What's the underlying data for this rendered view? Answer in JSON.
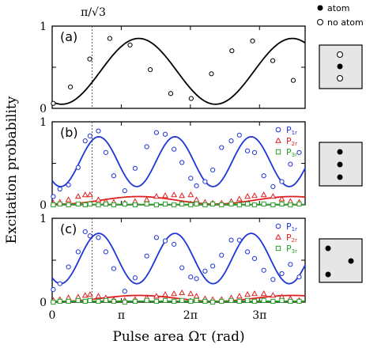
{
  "figure": {
    "ylabel": "Excitation probability",
    "xlabel": "Pulse area Ωτ (rad)",
    "xticks": [
      "0",
      "π",
      "2π",
      "3π"
    ],
    "vline_label": "π/√3",
    "key": {
      "atom": "atom",
      "no_atom": "no atom"
    }
  },
  "chart_data": [
    {
      "panel": "(a)",
      "type": "line+scatter",
      "xlim": [
        0,
        11.5
      ],
      "ylim": [
        0,
        1
      ],
      "yticks": [
        "0",
        "1"
      ],
      "vline_x": 1.8138,
      "inset": "triangle column: open, filled, open",
      "series": [
        {
          "color": "#000000",
          "marker": "circle",
          "points": [
            [
              0.05,
              0.06
            ],
            [
              0.83,
              0.26
            ],
            [
              1.71,
              0.6
            ],
            [
              2.62,
              0.85
            ],
            [
              3.54,
              0.77
            ],
            [
              4.46,
              0.47
            ],
            [
              5.39,
              0.18
            ],
            [
              6.32,
              0.12
            ],
            [
              7.24,
              0.42
            ],
            [
              8.17,
              0.7
            ],
            [
              9.11,
              0.82
            ],
            [
              10.03,
              0.58
            ],
            [
              10.96,
              0.34
            ]
          ],
          "fit": {
            "amp": 0.4,
            "offset": 0.45,
            "freq": 0.9,
            "phase": -0.4
          }
        }
      ]
    },
    {
      "panel": "(b)",
      "type": "line+scatter",
      "xlim": [
        0,
        11.5
      ],
      "ylim": [
        0,
        1
      ],
      "yticks": [
        "0",
        "1"
      ],
      "vline_x": 1.8138,
      "inset": "three filled atoms in a vertical column",
      "series": [
        {
          "name": "P1r",
          "label_main": "P",
          "label_sub": "1r",
          "color": "#1f35d8",
          "marker": "circle",
          "points": [
            [
              0.05,
              0.1
            ],
            [
              0.35,
              0.19
            ],
            [
              0.74,
              0.24
            ],
            [
              1.18,
              0.45
            ],
            [
              1.5,
              0.77
            ],
            [
              1.72,
              0.83
            ],
            [
              2.1,
              0.89
            ],
            [
              2.44,
              0.63
            ],
            [
              2.8,
              0.35
            ],
            [
              3.3,
              0.17
            ],
            [
              3.77,
              0.44
            ],
            [
              4.3,
              0.7
            ],
            [
              4.74,
              0.87
            ],
            [
              5.14,
              0.85
            ],
            [
              5.54,
              0.67
            ],
            [
              5.9,
              0.51
            ],
            [
              6.3,
              0.32
            ],
            [
              6.56,
              0.23
            ],
            [
              6.95,
              0.28
            ],
            [
              7.3,
              0.42
            ],
            [
              7.7,
              0.69
            ],
            [
              8.14,
              0.77
            ],
            [
              8.51,
              0.84
            ],
            [
              8.88,
              0.65
            ],
            [
              9.2,
              0.63
            ],
            [
              9.62,
              0.35
            ],
            [
              10.04,
              0.22
            ],
            [
              10.44,
              0.28
            ],
            [
              10.83,
              0.49
            ],
            [
              11.23,
              0.63
            ]
          ],
          "fit": {
            "amp": 0.3,
            "offset": 0.52,
            "freq": 1.8138,
            "phase": -0.7
          }
        },
        {
          "name": "P2r",
          "label_main": "P",
          "label_sub": "2r",
          "color": "#e02020",
          "marker": "triangle",
          "points": [
            [
              0.05,
              0.02
            ],
            [
              0.35,
              0.03
            ],
            [
              0.74,
              0.06
            ],
            [
              1.18,
              0.1
            ],
            [
              1.5,
              0.12
            ],
            [
              1.72,
              0.12
            ],
            [
              2.1,
              0.06
            ],
            [
              2.44,
              0.04
            ],
            [
              2.8,
              0.03
            ],
            [
              3.3,
              0.02
            ],
            [
              3.77,
              0.04
            ],
            [
              4.3,
              0.06
            ],
            [
              4.74,
              0.1
            ],
            [
              5.14,
              0.11
            ],
            [
              5.54,
              0.12
            ],
            [
              5.9,
              0.11
            ],
            [
              6.3,
              0.12
            ],
            [
              6.56,
              0.06
            ],
            [
              6.95,
              0.03
            ],
            [
              7.3,
              0.02
            ],
            [
              7.7,
              0.02
            ],
            [
              8.14,
              0.04
            ],
            [
              8.51,
              0.07
            ],
            [
              8.88,
              0.1
            ],
            [
              9.2,
              0.11
            ],
            [
              9.62,
              0.12
            ],
            [
              10.04,
              0.1
            ],
            [
              10.44,
              0.07
            ],
            [
              10.83,
              0.04
            ],
            [
              11.23,
              0.03
            ]
          ],
          "fit": {
            "amp": 0.045,
            "offset": 0.055,
            "freq": 0.9,
            "phase": -0.4
          }
        },
        {
          "name": "P3r",
          "label_main": "P",
          "label_sub": "3r",
          "color": "#2aa02a",
          "marker": "square",
          "points": [
            [
              0.05,
              0.0
            ],
            [
              0.35,
              0.01
            ],
            [
              0.74,
              0.0
            ],
            [
              1.18,
              0.01
            ],
            [
              1.5,
              0.0
            ],
            [
              1.72,
              0.01
            ],
            [
              2.1,
              0.0
            ],
            [
              2.44,
              0.01
            ],
            [
              2.8,
              0.0
            ],
            [
              3.3,
              0.01
            ],
            [
              3.77,
              0.0
            ],
            [
              4.3,
              0.01
            ],
            [
              4.74,
              0.0
            ],
            [
              5.14,
              0.01
            ],
            [
              5.54,
              0.0
            ],
            [
              5.9,
              0.01
            ],
            [
              6.3,
              0.0
            ],
            [
              6.56,
              0.01
            ],
            [
              6.95,
              0.0
            ],
            [
              7.3,
              0.01
            ],
            [
              7.7,
              0.0
            ],
            [
              8.14,
              0.01
            ],
            [
              8.51,
              0.0
            ],
            [
              8.88,
              0.01
            ],
            [
              9.2,
              0.0
            ],
            [
              9.62,
              0.01
            ],
            [
              10.04,
              0.0
            ],
            [
              10.44,
              0.01
            ],
            [
              10.83,
              0.0
            ],
            [
              11.23,
              0.01
            ]
          ],
          "fit": {
            "amp": 0.0,
            "offset": 0.005,
            "freq": 1.0,
            "phase": 0.0
          }
        }
      ]
    },
    {
      "panel": "(c)",
      "type": "line+scatter",
      "xlim": [
        0,
        11.5
      ],
      "ylim": [
        0,
        1
      ],
      "yticks": [
        "0",
        "1"
      ],
      "vline_x": 1.8138,
      "inset": "triangle: two filled atoms left, one filled atom right",
      "series": [
        {
          "name": "P1r",
          "label_main": "P",
          "label_sub": "1r",
          "color": "#1f35d8",
          "marker": "circle",
          "points": [
            [
              0.05,
              0.15
            ],
            [
              0.35,
              0.22
            ],
            [
              0.74,
              0.42
            ],
            [
              1.18,
              0.6
            ],
            [
              1.5,
              0.84
            ],
            [
              1.72,
              0.79
            ],
            [
              2.1,
              0.77
            ],
            [
              2.44,
              0.6
            ],
            [
              2.8,
              0.4
            ],
            [
              3.3,
              0.13
            ],
            [
              3.77,
              0.29
            ],
            [
              4.3,
              0.55
            ],
            [
              4.74,
              0.77
            ],
            [
              5.14,
              0.73
            ],
            [
              5.54,
              0.69
            ],
            [
              5.9,
              0.41
            ],
            [
              6.3,
              0.3
            ],
            [
              6.56,
              0.28
            ],
            [
              6.95,
              0.37
            ],
            [
              7.3,
              0.43
            ],
            [
              7.7,
              0.56
            ],
            [
              8.14,
              0.74
            ],
            [
              8.51,
              0.74
            ],
            [
              8.88,
              0.6
            ],
            [
              9.2,
              0.52
            ],
            [
              9.62,
              0.38
            ],
            [
              10.04,
              0.27
            ],
            [
              10.44,
              0.34
            ],
            [
              10.83,
              0.45
            ],
            [
              11.23,
              0.3
            ]
          ],
          "fit": {
            "amp": 0.3,
            "offset": 0.52,
            "freq": 1.8138,
            "phase": -0.7
          }
        },
        {
          "name": "P2r",
          "label_main": "P",
          "label_sub": "2r",
          "color": "#e02020",
          "marker": "triangle",
          "points": [
            [
              0.05,
              0.02
            ],
            [
              0.35,
              0.03
            ],
            [
              0.74,
              0.05
            ],
            [
              1.18,
              0.06
            ],
            [
              1.5,
              0.08
            ],
            [
              1.72,
              0.09
            ],
            [
              2.1,
              0.07
            ],
            [
              2.44,
              0.05
            ],
            [
              2.8,
              0.03
            ],
            [
              3.3,
              0.02
            ],
            [
              3.77,
              0.03
            ],
            [
              4.3,
              0.05
            ],
            [
              4.74,
              0.07
            ],
            [
              5.14,
              0.09
            ],
            [
              5.54,
              0.1
            ],
            [
              5.9,
              0.11
            ],
            [
              6.3,
              0.1
            ],
            [
              6.56,
              0.07
            ],
            [
              6.95,
              0.04
            ],
            [
              7.3,
              0.03
            ],
            [
              7.7,
              0.03
            ],
            [
              8.14,
              0.05
            ],
            [
              8.51,
              0.07
            ],
            [
              8.88,
              0.09
            ],
            [
              9.2,
              0.1
            ],
            [
              9.62,
              0.1
            ],
            [
              10.04,
              0.08
            ],
            [
              10.44,
              0.06
            ],
            [
              10.83,
              0.04
            ],
            [
              11.23,
              0.02
            ]
          ],
          "fit": {
            "amp": 0.035,
            "offset": 0.045,
            "freq": 0.9,
            "phase": -0.4
          }
        },
        {
          "name": "P3r",
          "label_main": "P",
          "label_sub": "3r",
          "color": "#2aa02a",
          "marker": "square",
          "points": [
            [
              0.05,
              0.0
            ],
            [
              0.35,
              0.01
            ],
            [
              0.74,
              0.01
            ],
            [
              1.18,
              0.02
            ],
            [
              1.5,
              0.01
            ],
            [
              1.72,
              0.02
            ],
            [
              2.1,
              0.01
            ],
            [
              2.44,
              0.02
            ],
            [
              2.8,
              0.01
            ],
            [
              3.3,
              0.0
            ],
            [
              3.77,
              0.01
            ],
            [
              4.3,
              0.02
            ],
            [
              4.74,
              0.01
            ],
            [
              5.14,
              0.02
            ],
            [
              5.54,
              0.01
            ],
            [
              5.9,
              0.02
            ],
            [
              6.3,
              0.01
            ],
            [
              6.56,
              0.02
            ],
            [
              6.95,
              0.01
            ],
            [
              7.3,
              0.0
            ],
            [
              7.7,
              0.01
            ],
            [
              8.14,
              0.02
            ],
            [
              8.51,
              0.01
            ],
            [
              8.88,
              0.02
            ],
            [
              9.2,
              0.01
            ],
            [
              9.62,
              0.02
            ],
            [
              10.04,
              0.01
            ],
            [
              10.44,
              0.02
            ],
            [
              10.83,
              0.01
            ],
            [
              11.23,
              0.01
            ]
          ],
          "fit": {
            "amp": 0.0,
            "offset": 0.01,
            "freq": 1.0,
            "phase": 0.0
          }
        }
      ]
    }
  ]
}
